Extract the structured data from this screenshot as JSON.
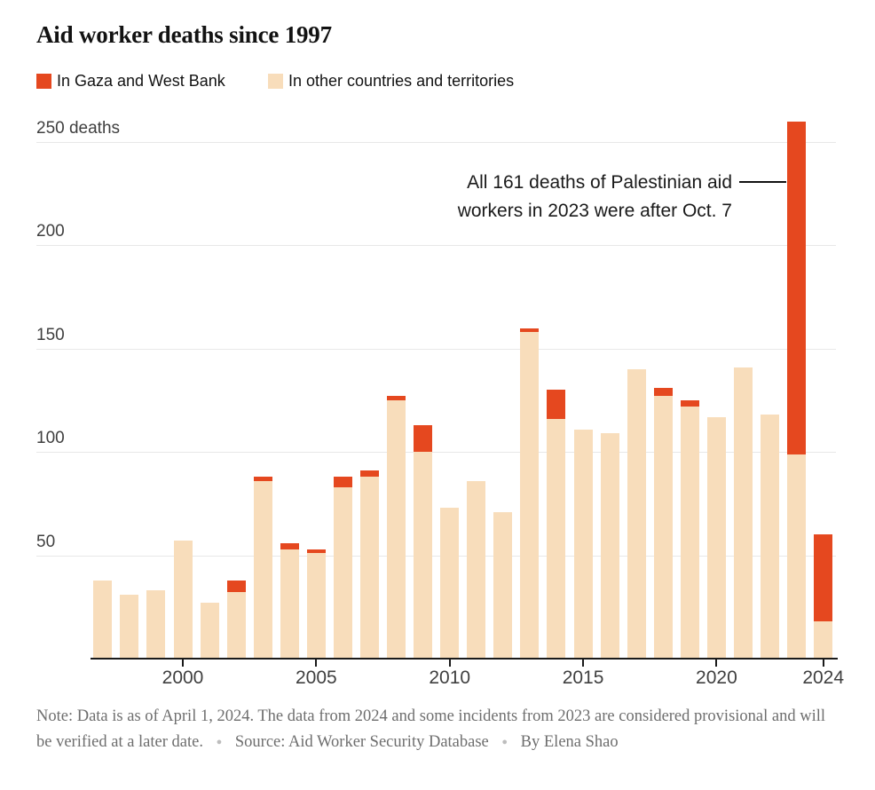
{
  "header": {
    "title": "Aid worker deaths since 1997"
  },
  "legend": {
    "items": [
      {
        "label": "In Gaza and West Bank",
        "color": "#E5481F"
      },
      {
        "label": "In other countries and territories",
        "color": "#F8DDBB"
      }
    ]
  },
  "annotation": {
    "line1": "All 161 deaths of Palestinian aid",
    "line2": "workers in 2023 were after Oct. 7"
  },
  "y_axis": {
    "ticks": [
      {
        "value": 50,
        "label": "50"
      },
      {
        "value": 100,
        "label": "100"
      },
      {
        "value": 150,
        "label": "150"
      },
      {
        "value": 200,
        "label": "200"
      },
      {
        "value": 250,
        "label": "250 deaths"
      }
    ]
  },
  "x_axis": {
    "ticks": [
      {
        "year": 2000,
        "label": "2000"
      },
      {
        "year": 2005,
        "label": "2005"
      },
      {
        "year": 2010,
        "label": "2010"
      },
      {
        "year": 2015,
        "label": "2015"
      },
      {
        "year": 2020,
        "label": "2020"
      },
      {
        "year": 2024,
        "label": "2024"
      }
    ]
  },
  "footer": {
    "note": "Note: Data is as of April 1, 2024. The data from 2024 and some incidents from 2023 are considered provisional and will be verified at a later date.",
    "source": "Source: Aid Worker Security Database",
    "byline": "By Elena Shao",
    "bullet": "●"
  },
  "chart_data": {
    "type": "bar",
    "stacked": true,
    "title": "Aid worker deaths since 1997",
    "unit": "deaths",
    "grid": true,
    "legend_position": "top",
    "ylim": [
      0,
      260
    ],
    "yticks": [
      50,
      100,
      150,
      200,
      250
    ],
    "categories": [
      1997,
      1998,
      1999,
      2000,
      2001,
      2002,
      2003,
      2004,
      2005,
      2006,
      2007,
      2008,
      2009,
      2010,
      2011,
      2012,
      2013,
      2014,
      2015,
      2016,
      2017,
      2018,
      2019,
      2020,
      2021,
      2022,
      2023,
      2024
    ],
    "series": [
      {
        "name": "In Gaza and West Bank",
        "color": "#E5481F",
        "values": [
          0,
          0,
          0,
          0,
          0,
          6,
          2,
          3,
          2,
          5,
          3,
          2,
          13,
          0,
          0,
          0,
          2,
          14,
          0,
          0,
          0,
          4,
          3,
          0,
          0,
          0,
          161,
          42
        ]
      },
      {
        "name": "In other countries and territories",
        "color": "#F8DDBB",
        "values": [
          38,
          31,
          33,
          57,
          27,
          32,
          86,
          53,
          51,
          83,
          88,
          125,
          100,
          73,
          86,
          71,
          158,
          116,
          111,
          109,
          140,
          127,
          122,
          117,
          141,
          118,
          99,
          18
        ]
      }
    ],
    "totals": [
      38,
      31,
      33,
      57,
      27,
      38,
      88,
      56,
      53,
      88,
      91,
      127,
      113,
      73,
      86,
      71,
      160,
      130,
      111,
      109,
      140,
      131,
      125,
      117,
      141,
      118,
      260,
      60
    ],
    "annotation_target_year": 2023
  }
}
